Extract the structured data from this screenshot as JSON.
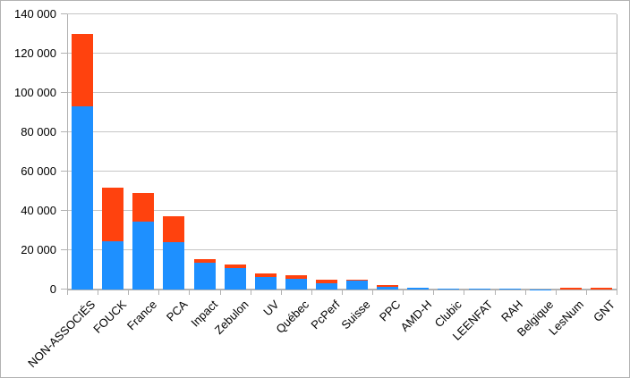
{
  "chart_data": {
    "type": "bar",
    "stacked": true,
    "title": "",
    "xlabel": "",
    "ylabel": "",
    "grid": true,
    "legend": "none",
    "ylim": [
      0,
      140000
    ],
    "ytick_interval": 20000,
    "ytick_labels": [
      "0",
      "20 000",
      "40 000",
      "60 000",
      "80 000",
      "100 000",
      "120 000",
      "140 000"
    ],
    "categories": [
      "NON-ASSOCIÉS",
      "FOUCK",
      "France",
      "PCA",
      "Inpact",
      "Zebulon",
      "UV",
      "Québec",
      "PcPerf",
      "Suisse",
      "PPC",
      "AMD-H",
      "Clubic",
      "LEENFAT",
      "RAH",
      "Belgique",
      "LesNum",
      "GNT"
    ],
    "series": [
      {
        "name": "series-1-blue",
        "color": "#1E90FF",
        "values": [
          93000,
          24500,
          34400,
          24000,
          13500,
          11000,
          6500,
          5600,
          3300,
          4900,
          1500,
          700,
          500,
          400,
          250,
          150,
          0,
          0
        ]
      },
      {
        "name": "series-2-red",
        "color": "#FF420E",
        "values": [
          37000,
          27500,
          14600,
          13500,
          2000,
          1800,
          1800,
          1800,
          1800,
          300,
          600,
          0,
          0,
          0,
          0,
          0,
          1000,
          1000
        ]
      }
    ]
  },
  "colors": {
    "background": "#FFFFFF",
    "frame_border": "#B2B2B2",
    "grid_line": "#C6C6C6",
    "axis_line": "#B2B2B2",
    "label_text": "#000000"
  }
}
